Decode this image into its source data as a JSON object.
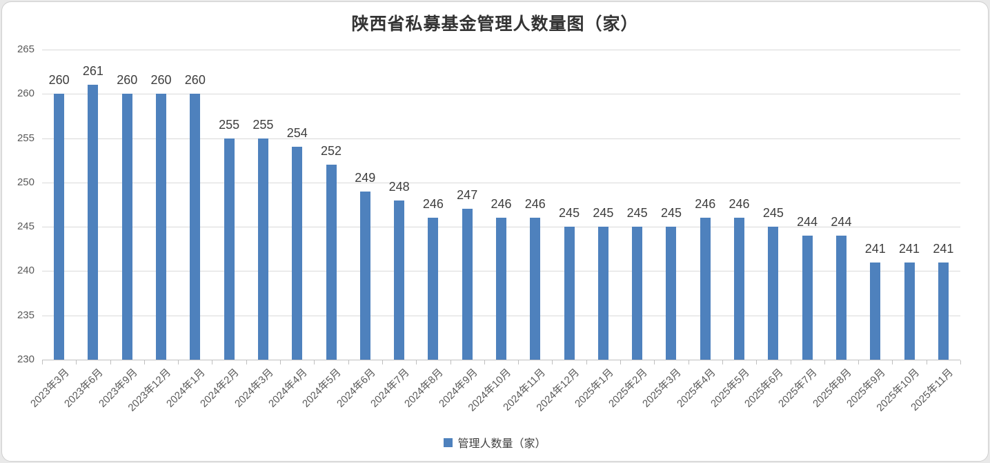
{
  "chart_data": {
    "type": "bar",
    "title": "陕西省私募基金管理人数量图（家）",
    "legend": [
      "管理人数量（家）"
    ],
    "legend_position": "bottom",
    "categories": [
      "2023年3月",
      "2023年6月",
      "2023年9月",
      "2023年12月",
      "2024年1月",
      "2024年2月",
      "2024年3月",
      "2024年4月",
      "2024年5月",
      "2024年6月",
      "2024年7月",
      "2024年8月",
      "2024年9月",
      "2024年10月",
      "2024年11月",
      "2024年12月",
      "2025年1月",
      "2025年2月",
      "2025年3月",
      "2025年4月",
      "2025年5月",
      "2025年6月",
      "2025年7月",
      "2025年8月",
      "2025年9月",
      "2025年10月",
      "2025年11月"
    ],
    "values": [
      260,
      261,
      260,
      260,
      260,
      255,
      255,
      254,
      252,
      249,
      248,
      246,
      247,
      246,
      246,
      245,
      245,
      245,
      245,
      246,
      246,
      245,
      244,
      244,
      241,
      241,
      241
    ],
    "data_labels": true,
    "xlabel": "",
    "ylabel": "",
    "ylim": [
      230,
      265
    ],
    "yticks": [
      230,
      235,
      240,
      245,
      250,
      255,
      260,
      265
    ],
    "grid": true,
    "bar_color": "#4E81BD",
    "grid_color": "#d9d9d9",
    "axis_color": "#bfbfbf"
  }
}
